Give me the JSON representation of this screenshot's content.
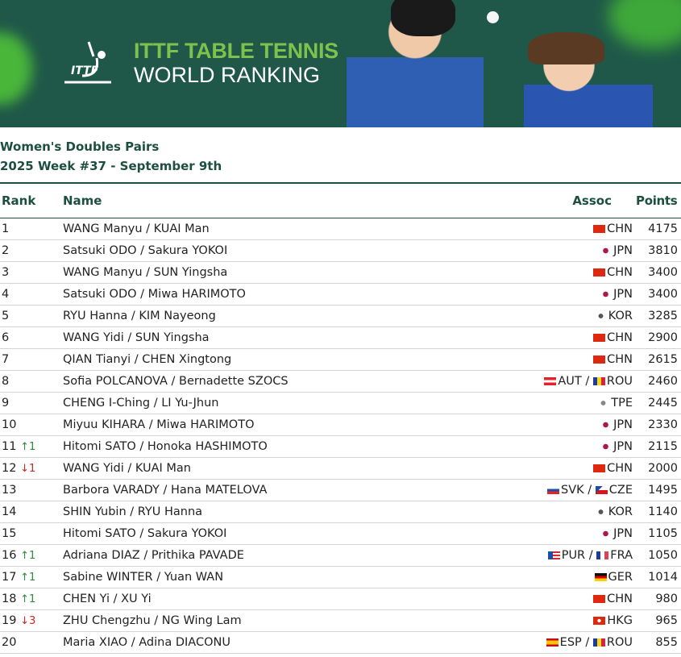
{
  "banner": {
    "title_line1": "ITTF TABLE TENNIS",
    "title_line2": "WORLD RANKING",
    "logo_text": "ITTF"
  },
  "subtitle": {
    "category": "Women's Doubles Pairs",
    "week": "2025 Week #37 - September 9th"
  },
  "columns": {
    "rank": "Rank",
    "name": "Name",
    "assoc": "Assoc",
    "points": "Points"
  },
  "rows": [
    {
      "rank": "1",
      "change": "",
      "dir": "",
      "name": "WANG Manyu / KUAI Man",
      "assoc": [
        {
          "flag": "chn",
          "code": "CHN"
        }
      ],
      "points": "4175"
    },
    {
      "rank": "2",
      "change": "",
      "dir": "",
      "name": "Satsuki ODO / Sakura YOKOI",
      "assoc": [
        {
          "flag": "jpn",
          "code": "JPN"
        }
      ],
      "points": "3810"
    },
    {
      "rank": "3",
      "change": "",
      "dir": "",
      "name": "WANG Manyu / SUN Yingsha",
      "assoc": [
        {
          "flag": "chn",
          "code": "CHN"
        }
      ],
      "points": "3400"
    },
    {
      "rank": "4",
      "change": "",
      "dir": "",
      "name": "Satsuki ODO / Miwa HARIMOTO",
      "assoc": [
        {
          "flag": "jpn",
          "code": "JPN"
        }
      ],
      "points": "3400"
    },
    {
      "rank": "5",
      "change": "",
      "dir": "",
      "name": "RYU Hanna / KIM Nayeong",
      "assoc": [
        {
          "flag": "kor",
          "code": "KOR"
        }
      ],
      "points": "3285"
    },
    {
      "rank": "6",
      "change": "",
      "dir": "",
      "name": "WANG Yidi / SUN Yingsha",
      "assoc": [
        {
          "flag": "chn",
          "code": "CHN"
        }
      ],
      "points": "2900"
    },
    {
      "rank": "7",
      "change": "",
      "dir": "",
      "name": "QIAN Tianyi / CHEN Xingtong",
      "assoc": [
        {
          "flag": "chn",
          "code": "CHN"
        }
      ],
      "points": "2615"
    },
    {
      "rank": "8",
      "change": "",
      "dir": "",
      "name": "Sofia POLCANOVA / Bernadette SZOCS",
      "assoc": [
        {
          "flag": "aut",
          "code": "AUT"
        },
        {
          "flag": "rou",
          "code": "ROU"
        }
      ],
      "points": "2460"
    },
    {
      "rank": "9",
      "change": "",
      "dir": "",
      "name": "CHENG I-Ching / LI Yu-Jhun",
      "assoc": [
        {
          "flag": "tpe",
          "code": "TPE"
        }
      ],
      "points": "2445"
    },
    {
      "rank": "10",
      "change": "",
      "dir": "",
      "name": "Miyuu KIHARA / Miwa HARIMOTO",
      "assoc": [
        {
          "flag": "jpn",
          "code": "JPN"
        }
      ],
      "points": "2330"
    },
    {
      "rank": "11",
      "change": "↑1",
      "dir": "up",
      "name": "Hitomi SATO / Honoka HASHIMOTO",
      "assoc": [
        {
          "flag": "jpn",
          "code": "JPN"
        }
      ],
      "points": "2115"
    },
    {
      "rank": "12",
      "change": "↓1",
      "dir": "down",
      "name": "WANG Yidi / KUAI Man",
      "assoc": [
        {
          "flag": "chn",
          "code": "CHN"
        }
      ],
      "points": "2000"
    },
    {
      "rank": "13",
      "change": "",
      "dir": "",
      "name": "Barbora VARADY / Hana MATELOVA",
      "assoc": [
        {
          "flag": "svk",
          "code": "SVK"
        },
        {
          "flag": "cze",
          "code": "CZE"
        }
      ],
      "points": "1495"
    },
    {
      "rank": "14",
      "change": "",
      "dir": "",
      "name": "SHIN Yubin / RYU Hanna",
      "assoc": [
        {
          "flag": "kor",
          "code": "KOR"
        }
      ],
      "points": "1140"
    },
    {
      "rank": "15",
      "change": "",
      "dir": "",
      "name": "Hitomi SATO / Sakura YOKOI",
      "assoc": [
        {
          "flag": "jpn",
          "code": "JPN"
        }
      ],
      "points": "1105"
    },
    {
      "rank": "16",
      "change": "↑1",
      "dir": "up",
      "name": "Adriana DIAZ / Prithika PAVADE",
      "assoc": [
        {
          "flag": "pur",
          "code": "PUR"
        },
        {
          "flag": "fra",
          "code": "FRA"
        }
      ],
      "points": "1050"
    },
    {
      "rank": "17",
      "change": "↑1",
      "dir": "up",
      "name": "Sabine WINTER / Yuan WAN",
      "assoc": [
        {
          "flag": "ger",
          "code": "GER"
        }
      ],
      "points": "1014"
    },
    {
      "rank": "18",
      "change": "↑1",
      "dir": "up",
      "name": "CHEN Yi / XU Yi",
      "assoc": [
        {
          "flag": "chn",
          "code": "CHN"
        }
      ],
      "points": "980"
    },
    {
      "rank": "19",
      "change": "↓3",
      "dir": "down",
      "name": "ZHU Chengzhu / NG Wing Lam",
      "assoc": [
        {
          "flag": "hkg",
          "code": "HKG"
        }
      ],
      "points": "965"
    },
    {
      "rank": "20",
      "change": "",
      "dir": "",
      "name": "Maria XIAO / Adina DIACONU",
      "assoc": [
        {
          "flag": "esp",
          "code": "ESP"
        },
        {
          "flag": "rou",
          "code": "ROU"
        }
      ],
      "points": "855"
    }
  ]
}
